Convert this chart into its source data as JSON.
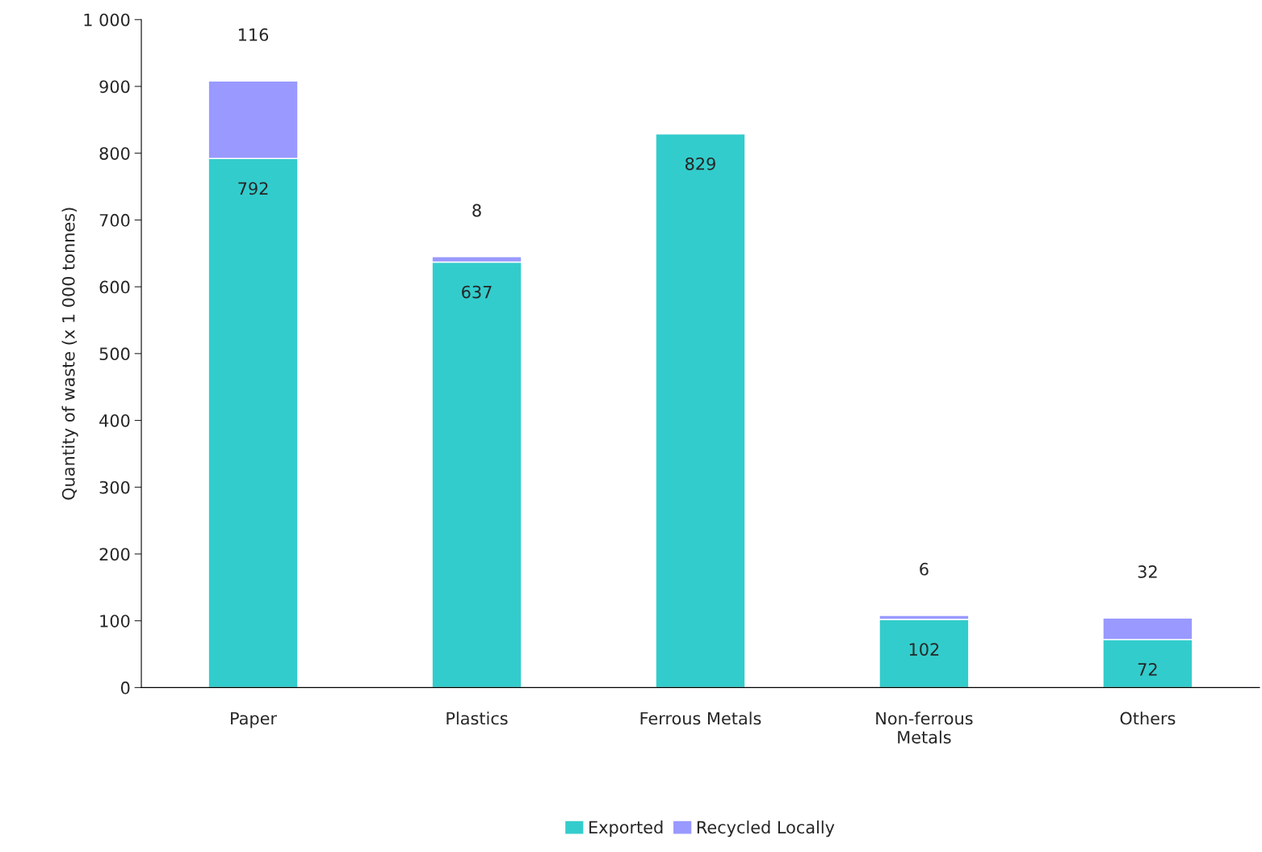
{
  "chart_data": {
    "type": "bar",
    "stacked": true,
    "ylabel": "Quantity of waste (x 1 000 tonnes)",
    "categories": [
      "Paper",
      "Plastics",
      "Ferrous Metals",
      "Non-ferrous\nMetals",
      "Others"
    ],
    "series": [
      {
        "name": "Exported",
        "color": "#33cccc",
        "values": [
          792,
          637,
          829,
          102,
          72
        ]
      },
      {
        "name": "Recycled Locally",
        "color": "#9999ff",
        "values": [
          116,
          8,
          null,
          6,
          32
        ]
      }
    ],
    "ylim": [
      0,
      1000
    ],
    "yticks": [
      0,
      100,
      200,
      300,
      400,
      500,
      600,
      700,
      800,
      900,
      {
        "value": 1000,
        "label": "1 000"
      }
    ],
    "data_labels": true,
    "grid": false,
    "legend": "bottom"
  }
}
